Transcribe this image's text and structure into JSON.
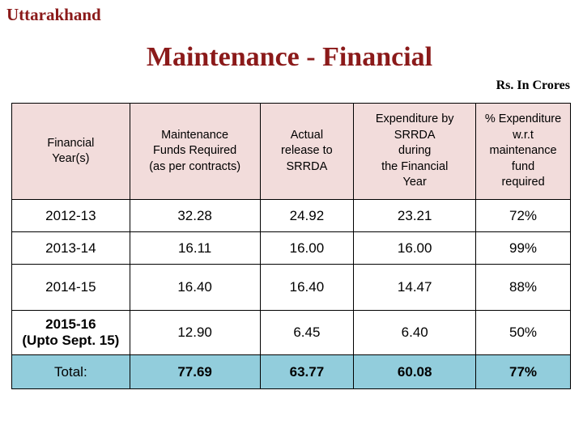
{
  "header": {
    "state": "Uttarakhand",
    "title": "Maintenance - Financial",
    "unit": "Rs. In Crores"
  },
  "table": {
    "columns": [
      "Financial\nYear(s)",
      "Maintenance\nFunds Required\n(as per contracts)",
      "Actual\nrelease to\nSRRDA",
      "Expenditure by\nSRRDA\nduring\nthe Financial\nYear",
      "% Expenditure\nw.r.t\nmaintenance\nfund\nrequired"
    ],
    "rows": [
      [
        "2012-13",
        "32.28",
        "24.92",
        "23.21",
        "72%"
      ],
      [
        "2013-14",
        "16.11",
        "16.00",
        "16.00",
        "99%"
      ],
      [
        "2014-15",
        "16.40",
        "16.40",
        "14.47",
        "88%"
      ],
      [
        "2015-16\n(Upto Sept. 15)",
        "12.90",
        "6.45",
        "6.40",
        "50%"
      ]
    ],
    "total": [
      "Total:",
      "77.69",
      "63.77",
      "60.08",
      "77%"
    ]
  },
  "colors": {
    "title": "#8b1a1a",
    "header_bg": "#f2dcdb",
    "total_bg": "#92cddc"
  }
}
